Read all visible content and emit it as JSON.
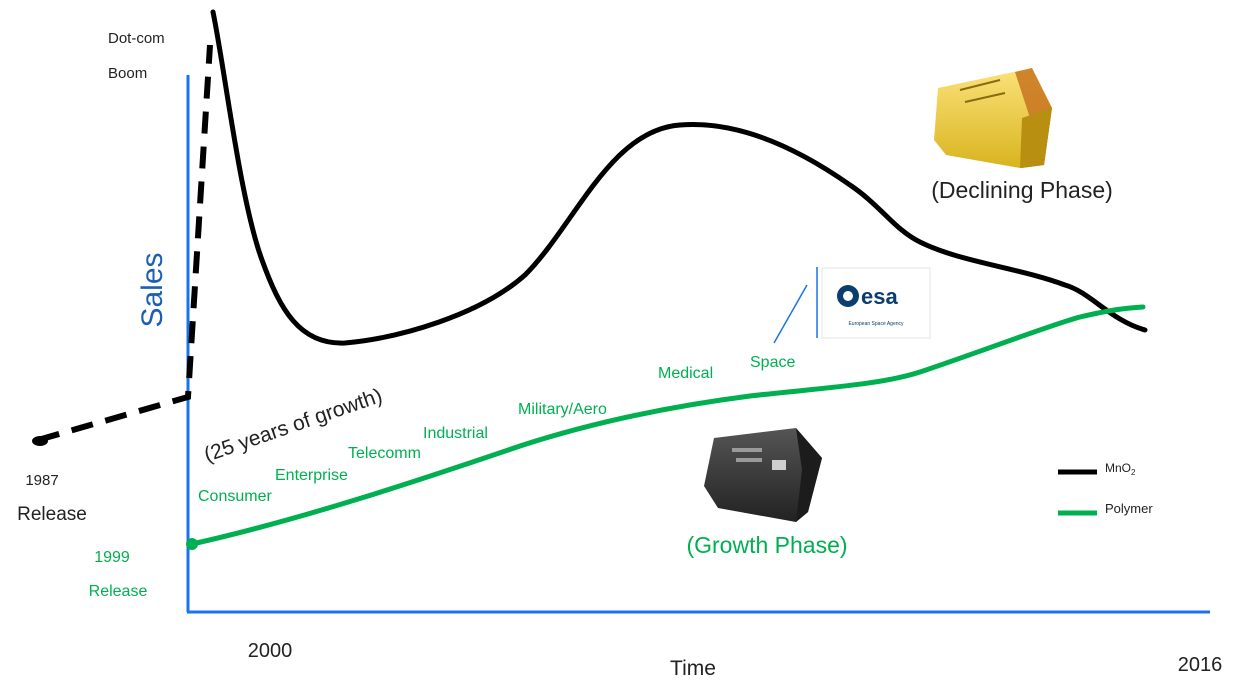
{
  "chart_data": {
    "type": "line",
    "xlabel": "Time",
    "ylabel": "Sales",
    "x_ticks": [
      "2000",
      "2016"
    ],
    "legend_position": "right",
    "series": [
      {
        "name": "MnO2",
        "color": "#000000"
      },
      {
        "name": "Polymer",
        "color": "#00b050"
      }
    ],
    "annotations": {
      "dotcom": [
        "Dot-com",
        "Boom"
      ],
      "release_1987": [
        "1987",
        "Release"
      ],
      "release_1999": [
        "1999",
        "Release"
      ],
      "growth_years": "(25 years of growth)",
      "declining_phase": "(Declining Phase)",
      "growth_phase": "(Growth Phase)",
      "esa_logo": "esa",
      "esa_subtitle": "European Space Agency"
    },
    "markets": [
      "Consumer",
      "Enterprise",
      "Telecomm",
      "Industrial",
      "Military/Aero",
      "Medical",
      "Space"
    ]
  },
  "colors": {
    "axis": "#1a73e8",
    "mno2": "#000000",
    "polymer": "#00b050",
    "tantalum_yellow": "#f2cf3c",
    "polymer_part": "#3a3a3a"
  },
  "icons": {
    "declining_part": "yellow-tantalum-capacitor-icon",
    "growth_part": "black-polymer-capacitor-icon",
    "esa": "esa-logo-icon"
  }
}
